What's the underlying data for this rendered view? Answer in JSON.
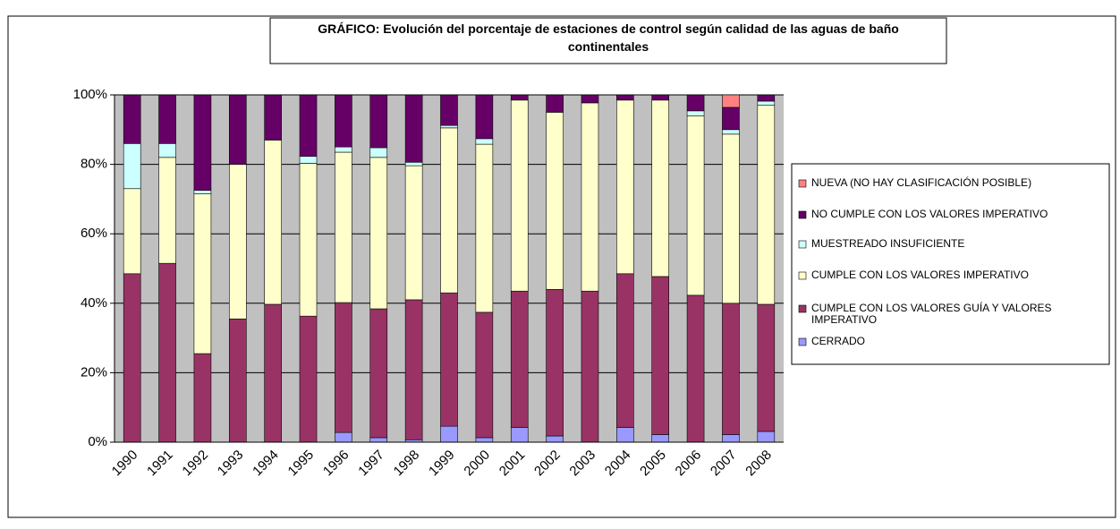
{
  "chart_data": {
    "type": "stacked_bar",
    "title": "GRÁFICO: Evolución del porcentaje de estaciones de control según calidad de las aguas de baño continentales",
    "categories": [
      "1990",
      "1991",
      "1992",
      "1993",
      "1994",
      "1995",
      "1996",
      "1997",
      "1998",
      "1999",
      "2000",
      "2001",
      "2002",
      "2003",
      "2004",
      "2005",
      "2006",
      "2007",
      "2008"
    ],
    "series": [
      {
        "name": "CERRADO",
        "color": "#9999ff",
        "values": [
          0,
          0,
          0,
          0,
          0,
          0,
          2.8,
          1.3,
          0.7,
          4.6,
          1.3,
          4.2,
          1.8,
          0,
          4.2,
          2.2,
          0,
          2.2,
          3.1
        ]
      },
      {
        "name": "CUMPLE CON LOS VALORES GUÍA Y VALORES IMPERATIVO",
        "color": "#993366",
        "values": [
          48.5,
          51.5,
          25.5,
          35.5,
          39.7,
          36.3,
          37.4,
          37.1,
          40.3,
          38.4,
          36.1,
          39.3,
          42.2,
          43.5,
          44.3,
          45.5,
          42.3,
          37.8,
          36.6
        ]
      },
      {
        "name": "CUMPLE CON LOS VALORES IMPERATIVO",
        "color": "#ffffcc",
        "values": [
          24.5,
          30.5,
          46,
          44.5,
          47.3,
          44,
          43.3,
          43.6,
          38.6,
          47.5,
          48.4,
          55,
          51,
          54.2,
          50,
          50.8,
          51.7,
          48.7,
          57.3
        ]
      },
      {
        "name": "MUESTREADO INSUFICIENTE",
        "color": "#ccffff",
        "values": [
          13,
          4,
          1,
          0,
          0,
          2,
          1.5,
          2.8,
          1,
          0.7,
          1.6,
          0,
          0,
          0,
          0,
          0,
          1.4,
          1.3,
          1.2
        ]
      },
      {
        "name": "NO CUMPLE CON LOS VALORES IMPERATIVO",
        "color": "#660066",
        "values": [
          14,
          14,
          27.5,
          20,
          13,
          17.7,
          15,
          15.2,
          19.4,
          8.8,
          12.6,
          1.5,
          5,
          2.3,
          1.5,
          1.5,
          4.6,
          6.4,
          1.8
        ]
      },
      {
        "name": "NUEVA (NO HAY CLASIFICACIÓN POSIBLE)",
        "color": "#ff8080",
        "values": [
          0,
          0,
          0,
          0,
          0,
          0,
          0,
          0,
          0,
          0,
          0,
          0,
          0,
          0,
          0,
          0,
          0,
          3.6,
          0
        ]
      }
    ],
    "ylim": [
      0,
      100
    ],
    "yticks": [
      {
        "value": 0,
        "label": "0%"
      },
      {
        "value": 20,
        "label": "20%"
      },
      {
        "value": 40,
        "label": "40%"
      },
      {
        "value": 60,
        "label": "60%"
      },
      {
        "value": 80,
        "label": "80%"
      },
      {
        "value": 100,
        "label": "100%"
      }
    ],
    "grid": true,
    "legend": "right"
  }
}
